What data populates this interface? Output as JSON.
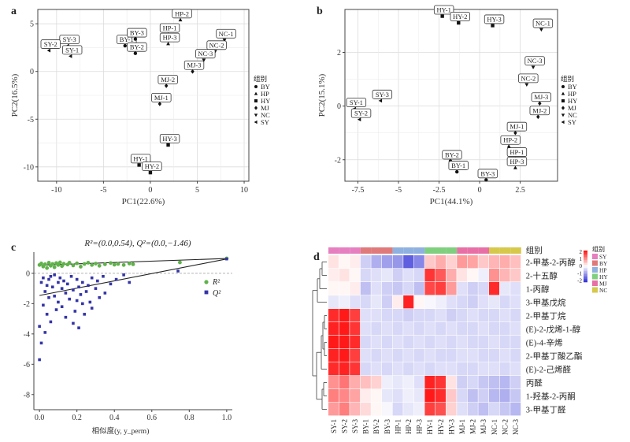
{
  "legend_title": "组别",
  "groups": [
    "BY",
    "HP",
    "HY",
    "MJ",
    "NC",
    "SY"
  ],
  "heatmap_groups": [
    "SY",
    "BY",
    "HP",
    "HY",
    "MJ",
    "NC"
  ],
  "group_colors": {
    "SY": "#e67fc0",
    "BY": "#e07a7a",
    "HP": "#8fb1df",
    "HY": "#7fcf7f",
    "MJ": "#e86fa6",
    "NC": "#d6c84a"
  },
  "group_markers": {
    "BY": "circle",
    "HP": "triangle-up",
    "HY": "square",
    "MJ": "diamond",
    "NC": "triangle-down",
    "SY": "triangle-left"
  },
  "chart_data": [
    {
      "panel": "a",
      "type": "scatter",
      "xlabel": "PC1(22.6%)",
      "ylabel": "PC2(16.5%)",
      "xlim": [
        -12,
        10.5
      ],
      "ylim": [
        -11.5,
        6.5
      ],
      "xticks": [
        -10,
        -5,
        0,
        5,
        10
      ],
      "yticks": [
        5,
        0,
        -5,
        -10
      ],
      "grid": true,
      "points": [
        {
          "label": "SY-3",
          "group": "SY",
          "x": -8.8,
          "y": 2.7
        },
        {
          "label": "SY-2",
          "group": "SY",
          "x": -10.8,
          "y": 2.2
        },
        {
          "label": "SY-1",
          "group": "SY",
          "x": -8.5,
          "y": 1.6
        },
        {
          "label": "BY-1",
          "group": "BY",
          "x": -2.7,
          "y": 2.7
        },
        {
          "label": "BY-3",
          "group": "BY",
          "x": -1.6,
          "y": 3.4
        },
        {
          "label": "BY-2",
          "group": "BY",
          "x": -1.6,
          "y": 1.9
        },
        {
          "label": "HP-2",
          "group": "HP",
          "x": 3.2,
          "y": 5.4
        },
        {
          "label": "HP-1",
          "group": "HP",
          "x": 1.9,
          "y": 3.9
        },
        {
          "label": "HP-3",
          "group": "HP",
          "x": 1.9,
          "y": 2.9
        },
        {
          "label": "NC-1",
          "group": "NC",
          "x": 7.9,
          "y": 3.3
        },
        {
          "label": "NC-2",
          "group": "NC",
          "x": 6.9,
          "y": 2.1
        },
        {
          "label": "NC-3",
          "group": "NC",
          "x": 5.7,
          "y": 1.2
        },
        {
          "label": "MJ-3",
          "group": "MJ",
          "x": 4.5,
          "y": 0.0
        },
        {
          "label": "MJ-2",
          "group": "MJ",
          "x": 1.7,
          "y": -1.5
        },
        {
          "label": "MJ-1",
          "group": "MJ",
          "x": 1.0,
          "y": -3.4
        },
        {
          "label": "HY-3",
          "group": "HY",
          "x": 1.9,
          "y": -7.7
        },
        {
          "label": "HY-1",
          "group": "HY",
          "x": -1.2,
          "y": -9.8
        },
        {
          "label": "HY-2",
          "group": "HY",
          "x": 0.0,
          "y": -10.6
        }
      ]
    },
    {
      "panel": "b",
      "type": "scatter",
      "xlabel": "PC1(44.1%)",
      "ylabel": "PC2(15.1%)",
      "xlim": [
        -8.3,
        4.8
      ],
      "ylim": [
        -2.8,
        3.6
      ],
      "xticks": [
        -7.5,
        -5,
        -2.5,
        0,
        2.5
      ],
      "yticks": [
        2,
        0,
        -2
      ],
      "grid": true,
      "points": [
        {
          "label": "HY-1",
          "group": "HY",
          "x": -2.3,
          "y": 3.35
        },
        {
          "label": "HY-2",
          "group": "HY",
          "x": -1.3,
          "y": 3.1
        },
        {
          "label": "HY-3",
          "group": "HY",
          "x": 0.8,
          "y": 3.0
        },
        {
          "label": "NC-1",
          "group": "NC",
          "x": 3.8,
          "y": 2.85
        },
        {
          "label": "NC-3",
          "group": "NC",
          "x": 3.3,
          "y": 1.45
        },
        {
          "label": "NC-2",
          "group": "NC",
          "x": 2.9,
          "y": 0.8
        },
        {
          "label": "SY-3",
          "group": "SY",
          "x": -6.1,
          "y": 0.2
        },
        {
          "label": "SY-1",
          "group": "SY",
          "x": -7.7,
          "y": -0.1
        },
        {
          "label": "SY-2",
          "group": "SY",
          "x": -7.4,
          "y": -0.5
        },
        {
          "label": "MJ-3",
          "group": "MJ",
          "x": 3.7,
          "y": 0.1
        },
        {
          "label": "MJ-2",
          "group": "MJ",
          "x": 3.6,
          "y": -0.4
        },
        {
          "label": "MJ-1",
          "group": "MJ",
          "x": 2.2,
          "y": -1.0
        },
        {
          "label": "HP-2",
          "group": "HP",
          "x": 1.8,
          "y": -1.5
        },
        {
          "label": "HP-1",
          "group": "HP",
          "x": 2.2,
          "y": -1.95
        },
        {
          "label": "HP-3",
          "group": "HP",
          "x": 2.2,
          "y": -2.3
        },
        {
          "label": "BY-2",
          "group": "BY",
          "x": -1.8,
          "y": -2.05
        },
        {
          "label": "BY-1",
          "group": "BY",
          "x": -1.4,
          "y": -2.45
        },
        {
          "label": "BY-3",
          "group": "BY",
          "x": 0.4,
          "y": -2.75
        }
      ]
    },
    {
      "panel": "c",
      "type": "scatter",
      "title": "R²=(0.0,0.54), Q²=(0.0,−1.46)",
      "xlabel": "相似度(y, y_perm)",
      "ylabel": "",
      "xlim": [
        -0.03,
        1.03
      ],
      "ylim": [
        -9,
        1.4
      ],
      "xticks": [
        0.0,
        0.2,
        0.4,
        0.6,
        0.8,
        1.0
      ],
      "yticks": [
        0,
        -2,
        -4,
        -6,
        -8
      ],
      "xtick_labels": [
        "0.0",
        "0.2",
        "0.4",
        "0.6",
        "0.8",
        "1.0"
      ],
      "legend_entries": [
        "R²",
        "Q²"
      ],
      "series": [
        {
          "name": "R²",
          "color": "#5fb24a",
          "fit": [
            [
              0.0,
              0.54
            ],
            [
              1.0,
              0.98
            ]
          ],
          "values": [
            [
              0.0,
              0.55
            ],
            [
              0.01,
              0.65
            ],
            [
              0.02,
              0.45
            ],
            [
              0.03,
              0.6
            ],
            [
              0.04,
              0.35
            ],
            [
              0.05,
              0.7
            ],
            [
              0.06,
              0.5
            ],
            [
              0.07,
              0.62
            ],
            [
              0.08,
              0.4
            ],
            [
              0.09,
              0.68
            ],
            [
              0.1,
              0.55
            ],
            [
              0.11,
              0.72
            ],
            [
              0.12,
              0.48
            ],
            [
              0.13,
              0.63
            ],
            [
              0.15,
              0.58
            ],
            [
              0.16,
              0.7
            ],
            [
              0.18,
              0.52
            ],
            [
              0.2,
              0.66
            ],
            [
              0.22,
              0.44
            ],
            [
              0.24,
              0.62
            ],
            [
              0.26,
              0.7
            ],
            [
              0.28,
              0.55
            ],
            [
              0.3,
              0.64
            ],
            [
              0.32,
              0.5
            ],
            [
              0.35,
              0.6
            ],
            [
              0.38,
              0.68
            ],
            [
              0.4,
              0.57
            ],
            [
              0.42,
              0.62
            ],
            [
              0.45,
              0.55
            ],
            [
              0.48,
              0.65
            ],
            [
              0.5,
              0.6
            ],
            [
              0.75,
              0.72
            ],
            [
              1.0,
              0.98
            ]
          ]
        },
        {
          "name": "Q²",
          "color": "#3434a8",
          "fit": [
            [
              0.0,
              -1.46
            ],
            [
              1.0,
              0.95
            ]
          ],
          "values": [
            [
              0.0,
              -5.7
            ],
            [
              0.0,
              -3.5
            ],
            [
              0.01,
              -0.6
            ],
            [
              0.01,
              -4.6
            ],
            [
              0.02,
              -2.1
            ],
            [
              0.02,
              -0.3
            ],
            [
              0.03,
              -3.9
            ],
            [
              0.03,
              -1.2
            ],
            [
              0.04,
              -0.8
            ],
            [
              0.04,
              -2.7
            ],
            [
              0.05,
              -0.4
            ],
            [
              0.05,
              -1.6
            ],
            [
              0.06,
              -0.2
            ],
            [
              0.06,
              -3.2
            ],
            [
              0.07,
              -0.9
            ],
            [
              0.08,
              -1.5
            ],
            [
              0.08,
              -0.1
            ],
            [
              0.09,
              -2.4
            ],
            [
              0.1,
              -0.6
            ],
            [
              0.1,
              -1.9
            ],
            [
              0.11,
              -0.3
            ],
            [
              0.12,
              -2.2
            ],
            [
              0.12,
              -1.0
            ],
            [
              0.13,
              -0.5
            ],
            [
              0.14,
              -1.3
            ],
            [
              0.14,
              -2.9
            ],
            [
              0.15,
              -0.7
            ],
            [
              0.16,
              -1.7
            ],
            [
              0.17,
              -0.2
            ],
            [
              0.18,
              -3.3
            ],
            [
              0.18,
              -1.1
            ],
            [
              0.19,
              -2.5
            ],
            [
              0.2,
              -0.4
            ],
            [
              0.2,
              -1.8
            ],
            [
              0.21,
              -0.9
            ],
            [
              0.21,
              -3.6
            ],
            [
              0.22,
              -1.4
            ],
            [
              0.23,
              -2.0
            ],
            [
              0.23,
              -0.6
            ],
            [
              0.24,
              -2.7
            ],
            [
              0.25,
              -1.2
            ],
            [
              0.26,
              -0.8
            ],
            [
              0.27,
              -1.9
            ],
            [
              0.28,
              -0.3
            ],
            [
              0.28,
              -2.3
            ],
            [
              0.3,
              -1.0
            ],
            [
              0.31,
              -0.5
            ],
            [
              0.32,
              -1.6
            ],
            [
              0.34,
              -0.2
            ],
            [
              0.35,
              -1.3
            ],
            [
              0.38,
              -0.7
            ],
            [
              0.41,
              -0.4
            ],
            [
              0.45,
              -0.1
            ],
            [
              0.48,
              -0.6
            ],
            [
              0.74,
              0.15
            ],
            [
              1.0,
              0.95
            ]
          ]
        }
      ]
    },
    {
      "panel": "d",
      "type": "heatmap",
      "legend_title": "组别",
      "scale_ticks": [
        2,
        1,
        0,
        -1,
        -2
      ],
      "columns": [
        "SY-1",
        "SY-2",
        "SY-3",
        "BY-1",
        "BY-2",
        "BY-3",
        "HP-1",
        "HP-2",
        "HP-3",
        "HY-1",
        "HY-2",
        "HY-3",
        "MJ-1",
        "MJ-2",
        "MJ-3",
        "NC-1",
        "NC-2",
        "NC-3"
      ],
      "column_groups": [
        "SY",
        "SY",
        "SY",
        "BY",
        "BY",
        "BY",
        "HP",
        "HP",
        "HP",
        "HY",
        "HY",
        "HY",
        "MJ",
        "MJ",
        "MJ",
        "NC",
        "NC",
        "NC"
      ],
      "rows": [
        "2-甲基-2-丙醇",
        "2-十五醇",
        "1-丙醇",
        "3-甲基戊烷",
        "2-甲基丁烷",
        "(E)-2-戊烯-1-醇",
        "(E)-4-辛烯",
        "2-甲基丁酸乙酯",
        "(E)-2-己烯醛",
        "丙醛",
        "1-羟基-2-丙酮",
        "3-甲基丁醛"
      ],
      "values": [
        [
          0.3,
          0.1,
          0.2,
          -0.6,
          -1.0,
          -1.2,
          -1.3,
          -2.0,
          -1.5,
          0.6,
          0.9,
          0.5,
          1.1,
          1.0,
          0.6,
          0.8,
          0.9,
          0.7
        ],
        [
          0.2,
          0.3,
          0.1,
          -0.5,
          -0.4,
          -0.3,
          -0.6,
          -0.4,
          -0.5,
          2.2,
          1.8,
          0.9,
          0.3,
          0.1,
          -0.2,
          1.2,
          0.8,
          0.6
        ],
        [
          0.1,
          0.1,
          0.2,
          -0.8,
          -0.4,
          -0.6,
          -0.7,
          -0.5,
          -0.8,
          2.0,
          2.1,
          1.1,
          -0.4,
          -0.6,
          -0.5,
          2.3,
          -0.3,
          -0.4
        ],
        [
          -0.3,
          -0.2,
          -0.4,
          -0.5,
          -0.3,
          -0.6,
          0.2,
          2.4,
          0.1,
          -0.1,
          -0.2,
          -0.4,
          -0.5,
          -0.6,
          -0.4,
          -0.3,
          -0.5,
          -0.4
        ],
        [
          2.3,
          2.5,
          2.1,
          -0.4,
          -0.4,
          -0.5,
          -0.5,
          -0.6,
          -0.5,
          -0.5,
          -0.4,
          -0.6,
          -0.5,
          -0.4,
          -0.5,
          -0.5,
          -0.4,
          -0.5
        ],
        [
          2.4,
          2.6,
          2.2,
          -0.4,
          -0.5,
          -0.4,
          -0.5,
          -0.4,
          -0.5,
          -0.4,
          -0.5,
          -0.4,
          -0.5,
          -0.5,
          -0.4,
          -0.5,
          -0.5,
          -0.4
        ],
        [
          2.5,
          2.5,
          2.3,
          -0.5,
          -0.4,
          -0.5,
          -0.4,
          -0.5,
          -0.4,
          -0.5,
          -0.4,
          -0.5,
          -0.4,
          -0.5,
          -0.5,
          -0.4,
          -0.5,
          -0.5
        ],
        [
          2.4,
          2.6,
          2.1,
          -0.4,
          -0.5,
          -0.4,
          -0.5,
          -0.4,
          -0.5,
          -0.4,
          -0.5,
          -0.5,
          -0.4,
          -0.4,
          -0.5,
          -0.5,
          -0.4,
          -0.5
        ],
        [
          2.3,
          2.4,
          2.2,
          -0.5,
          -0.4,
          -0.5,
          -0.4,
          -0.5,
          -0.4,
          -0.5,
          -0.4,
          -0.4,
          -0.5,
          -0.5,
          -0.4,
          -0.4,
          -0.5,
          -0.4
        ],
        [
          1.2,
          1.5,
          0.9,
          0.7,
          0.5,
          -0.2,
          -0.3,
          -0.2,
          -0.4,
          2.4,
          2.2,
          0.3,
          -0.6,
          -0.5,
          -0.7,
          -0.8,
          -0.9,
          -0.6
        ],
        [
          1.4,
          1.3,
          1.0,
          0.2,
          0.1,
          -0.3,
          -0.4,
          -0.2,
          -0.3,
          2.5,
          2.3,
          0.6,
          -0.5,
          -0.8,
          -0.6,
          -0.9,
          -1.0,
          -0.7
        ],
        [
          1.1,
          1.4,
          0.8,
          0.4,
          0.1,
          -0.1,
          -0.5,
          -0.3,
          -0.2,
          2.1,
          1.9,
          0.5,
          -0.4,
          -0.6,
          -0.8,
          -0.5,
          -0.7,
          -0.9
        ]
      ]
    }
  ]
}
